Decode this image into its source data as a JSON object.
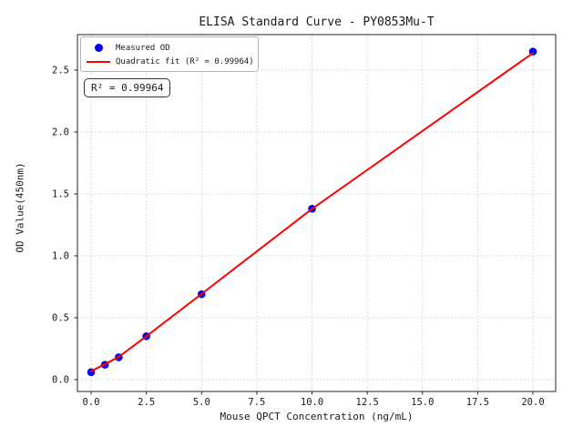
{
  "figure": {
    "title": "ELISA Standard Curve - PY0853Mu-T",
    "x_axis_label": "Mouse QPCT Concentration (ng/mL)",
    "y_axis_label": "OD Value(450nm)",
    "annotation": "R² = 0.99964",
    "legend": {
      "measured_label": "Measured OD",
      "fit_label": "Quadratic fit (R² = 0.99964)"
    }
  },
  "chart_data": {
    "type": "scatter",
    "title": "ELISA Standard Curve - PY0853Mu-T",
    "xlabel": "Mouse QPCT Concentration (ng/mL)",
    "ylabel": "OD Value(450nm)",
    "x": [
      0,
      0.625,
      1.25,
      2.5,
      5,
      10,
      20
    ],
    "series": [
      {
        "name": "Measured OD",
        "type": "scatter",
        "marker": "circle",
        "color": "#0000ff",
        "y": [
          0.06,
          0.12,
          0.18,
          0.35,
          0.69,
          1.38,
          2.65
        ]
      },
      {
        "name": "Quadratic fit (R² = 0.99964)",
        "type": "line",
        "color": "#ff0000",
        "y": [
          0.068,
          0.125,
          0.183,
          0.35,
          0.692,
          1.379,
          2.638
        ]
      }
    ],
    "fit": {
      "type": "quadratic",
      "r_squared": 0.99964
    },
    "x_ticks": {
      "values": [
        0,
        2.5,
        5,
        7.5,
        10,
        12.5,
        15,
        17.5,
        20
      ],
      "labels": [
        "0.0",
        "2.5",
        "5.0",
        "7.5",
        "10.0",
        "12.5",
        "15.0",
        "17.5",
        "20.0"
      ]
    },
    "y_ticks": {
      "values": [
        0,
        0.5,
        1,
        1.5,
        2,
        2.5
      ],
      "labels": [
        "0.0",
        "0.5",
        "1.0",
        "1.5",
        "2.0",
        "2.5"
      ]
    },
    "xlim": [
      -0.62,
      21.03
    ],
    "ylim": [
      -0.096,
      2.787
    ],
    "grid": true,
    "legend_position": "upper-left",
    "colors": {
      "points": "#0000ff",
      "fit_line": "#ff0000",
      "grid": "#cccccc",
      "spine": "#262626",
      "text": "#1a1a1a"
    }
  }
}
